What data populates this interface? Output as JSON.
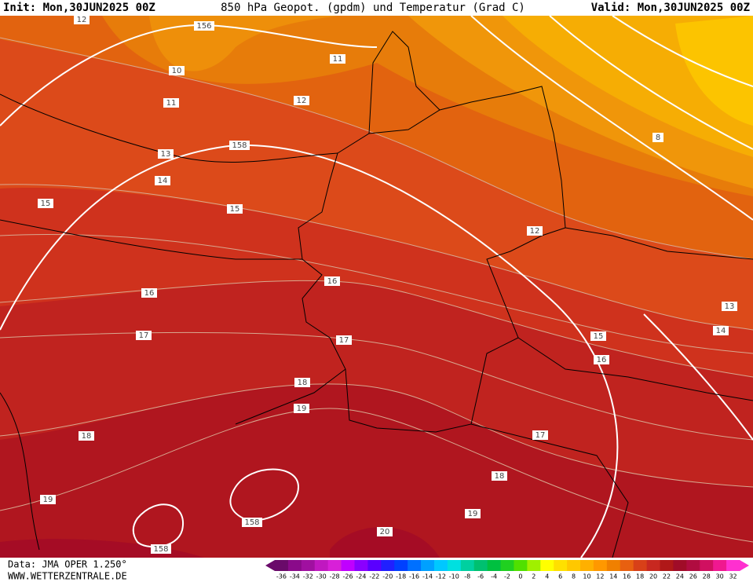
{
  "header": {
    "init": "Init: Mon,30JUN2025 00Z",
    "title": "850 hPa Geopot. (gpdm) und Temperatur (Grad C)",
    "valid": "Valid: Mon,30JUN2025 00Z"
  },
  "contour_labels": [
    "12",
    "10",
    "11",
    "11",
    "12",
    "13",
    "14",
    "15",
    "15",
    "16",
    "16",
    "17",
    "17",
    "15",
    "16",
    "14",
    "13",
    "12",
    "8",
    "18",
    "19",
    "18",
    "17",
    "18",
    "19",
    "19",
    "20",
    "158",
    "158",
    "156",
    "158"
  ],
  "footer": {
    "data_source": "Data: JMA OPER 1.250°",
    "website": "WWW.WETTERZENTRALE.DE"
  },
  "colorbar": {
    "ticks": [
      -36,
      -34,
      -32,
      -30,
      -28,
      -26,
      -24,
      -22,
      -20,
      -18,
      -16,
      -14,
      -12,
      -10,
      -8,
      -6,
      -4,
      -2,
      0,
      2,
      4,
      6,
      8,
      10,
      12,
      14,
      16,
      18,
      20,
      22,
      24,
      26,
      28,
      30,
      32
    ],
    "colors": [
      "#6a0a6a",
      "#8a0a8a",
      "#a010a0",
      "#c018c0",
      "#d820d8",
      "#c000ff",
      "#8a00ff",
      "#5a00ff",
      "#2020ff",
      "#0040ff",
      "#0070ff",
      "#00a0ff",
      "#00c8ff",
      "#00e0e0",
      "#00d0a0",
      "#00c070",
      "#00c040",
      "#20d020",
      "#50e000",
      "#a0f000",
      "#ffff00",
      "#ffe000",
      "#ffc800",
      "#ffb000",
      "#ff9800",
      "#f08000",
      "#e86010",
      "#d84018",
      "#c82820",
      "#b01818",
      "#a00c28",
      "#b00c40",
      "#d01060",
      "#f01890",
      "#ff30d0"
    ]
  }
}
